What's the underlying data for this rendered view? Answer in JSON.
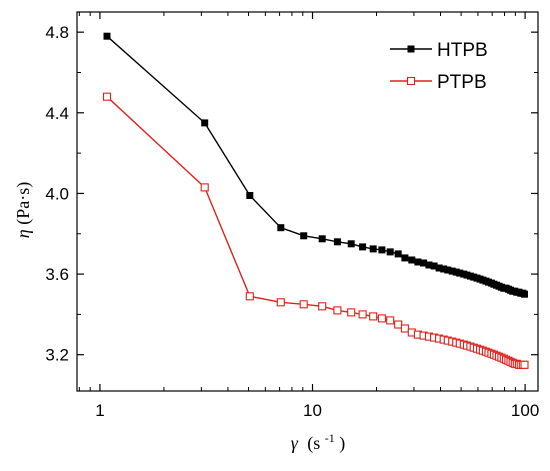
{
  "chart_data": {
    "type": "line",
    "xlabel": {
      "symbol": "γ",
      "unit_prefix": "(s",
      "unit_exp": "-1",
      "unit_suffix": ")"
    },
    "ylabel": {
      "symbol": "η",
      "unit": "(Pa·s)"
    },
    "x_scale": "log",
    "xlim": [
      0.78,
      115
    ],
    "ylim": [
      3.02,
      4.9
    ],
    "x_ticks": [
      1,
      10,
      100
    ],
    "x_tick_labels": [
      "1",
      "10",
      "100"
    ],
    "y_ticks": [
      3.2,
      3.6,
      4.0,
      4.4,
      4.8
    ],
    "y_tick_labels": [
      "3.2",
      "3.6",
      "4.0",
      "4.4",
      "4.8"
    ],
    "grid": false,
    "legend_position": "top-right",
    "series": [
      {
        "name": "HTPB",
        "color": "#000000",
        "marker": "filled-square",
        "x": [
          1.08,
          3.11,
          5.07,
          7.09,
          9.09,
          11.1,
          13.1,
          15.2,
          17.2,
          19.3,
          21.2,
          23.2,
          25.3,
          27.2,
          29.3,
          31.3,
          33.3,
          35.3,
          37.3,
          39.4,
          41.4,
          43.3,
          45.4,
          47.4,
          49.3,
          51.5,
          53.3,
          55.3,
          57.3,
          59.4,
          61.4,
          63.3,
          65.4,
          67.3,
          69.4,
          71.3,
          73.4,
          75.4,
          77.4,
          79.4,
          81.4,
          83.5,
          85.4,
          87.4,
          89.4,
          91.4,
          93.5,
          95.4,
          97.5,
          99.4
        ],
        "y": [
          4.78,
          4.35,
          3.99,
          3.83,
          3.79,
          3.775,
          3.76,
          3.75,
          3.735,
          3.725,
          3.72,
          3.71,
          3.7,
          3.68,
          3.67,
          3.66,
          3.655,
          3.645,
          3.64,
          3.63,
          3.625,
          3.62,
          3.615,
          3.61,
          3.605,
          3.6,
          3.595,
          3.59,
          3.585,
          3.58,
          3.575,
          3.57,
          3.565,
          3.56,
          3.555,
          3.55,
          3.545,
          3.54,
          3.535,
          3.53,
          3.53,
          3.525,
          3.52,
          3.515,
          3.515,
          3.51,
          3.51,
          3.505,
          3.505,
          3.5
        ]
      },
      {
        "name": "PTPB",
        "color": "#e0201b",
        "marker": "open-square",
        "x": [
          1.08,
          3.11,
          5.07,
          7.09,
          9.09,
          11.1,
          13.1,
          15.2,
          17.2,
          19.3,
          21.2,
          23.2,
          25.3,
          27.2,
          29.3,
          31.3,
          33.3,
          35.3,
          37.3,
          39.4,
          41.4,
          43.3,
          45.4,
          47.4,
          49.3,
          51.5,
          53.3,
          55.3,
          57.3,
          59.4,
          61.4,
          63.3,
          65.4,
          67.3,
          69.4,
          71.3,
          73.4,
          75.4,
          77.4,
          79.4,
          81.4,
          83.5,
          85.4,
          87.4,
          89.4,
          91.4,
          93.5,
          95.4,
          97.5,
          99.4
        ],
        "y": [
          4.48,
          4.03,
          3.49,
          3.46,
          3.45,
          3.44,
          3.42,
          3.41,
          3.4,
          3.39,
          3.38,
          3.37,
          3.35,
          3.33,
          3.31,
          3.3,
          3.295,
          3.29,
          3.285,
          3.28,
          3.275,
          3.27,
          3.265,
          3.26,
          3.255,
          3.25,
          3.245,
          3.24,
          3.235,
          3.23,
          3.225,
          3.22,
          3.215,
          3.21,
          3.205,
          3.2,
          3.195,
          3.19,
          3.185,
          3.18,
          3.175,
          3.17,
          3.165,
          3.16,
          3.155,
          3.155,
          3.15,
          3.15,
          3.15,
          3.15
        ]
      }
    ]
  }
}
